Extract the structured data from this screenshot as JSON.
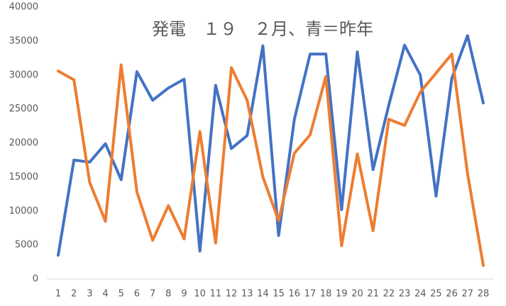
{
  "chart_data": {
    "type": "line",
    "title": "発電　１９　２月、青＝昨年",
    "categories": [
      "1",
      "2",
      "3",
      "4",
      "5",
      "6",
      "7",
      "8",
      "9",
      "10",
      "11",
      "12",
      "13",
      "14",
      "15",
      "16",
      "17",
      "18",
      "19",
      "20",
      "21",
      "22",
      "23",
      "24",
      "25",
      "26",
      "27",
      "28"
    ],
    "series": [
      {
        "color": "#4472c4",
        "values": [
          3500,
          17500,
          17200,
          19900,
          14600,
          30500,
          26300,
          28100,
          29400,
          4100,
          28500,
          19200,
          21100,
          34300,
          6400,
          23500,
          33100,
          33100,
          10200,
          33400,
          16100,
          25600,
          34400,
          30000,
          12200,
          29500,
          35800,
          25900
        ]
      },
      {
        "color": "#ed7d31",
        "values": [
          30600,
          29300,
          14200,
          8500,
          31500,
          12800,
          5700,
          10800,
          5900,
          21700,
          5300,
          31100,
          26300,
          15000,
          8600,
          18500,
          21200,
          29800,
          4900,
          18400,
          7100,
          23500,
          22600,
          27500,
          30300,
          33100,
          15500,
          2000
        ]
      }
    ],
    "ylim": [
      0,
      40000
    ],
    "yticks": [
      0,
      5000,
      10000,
      15000,
      20000,
      25000,
      30000,
      35000,
      40000
    ],
    "grid": false
  }
}
